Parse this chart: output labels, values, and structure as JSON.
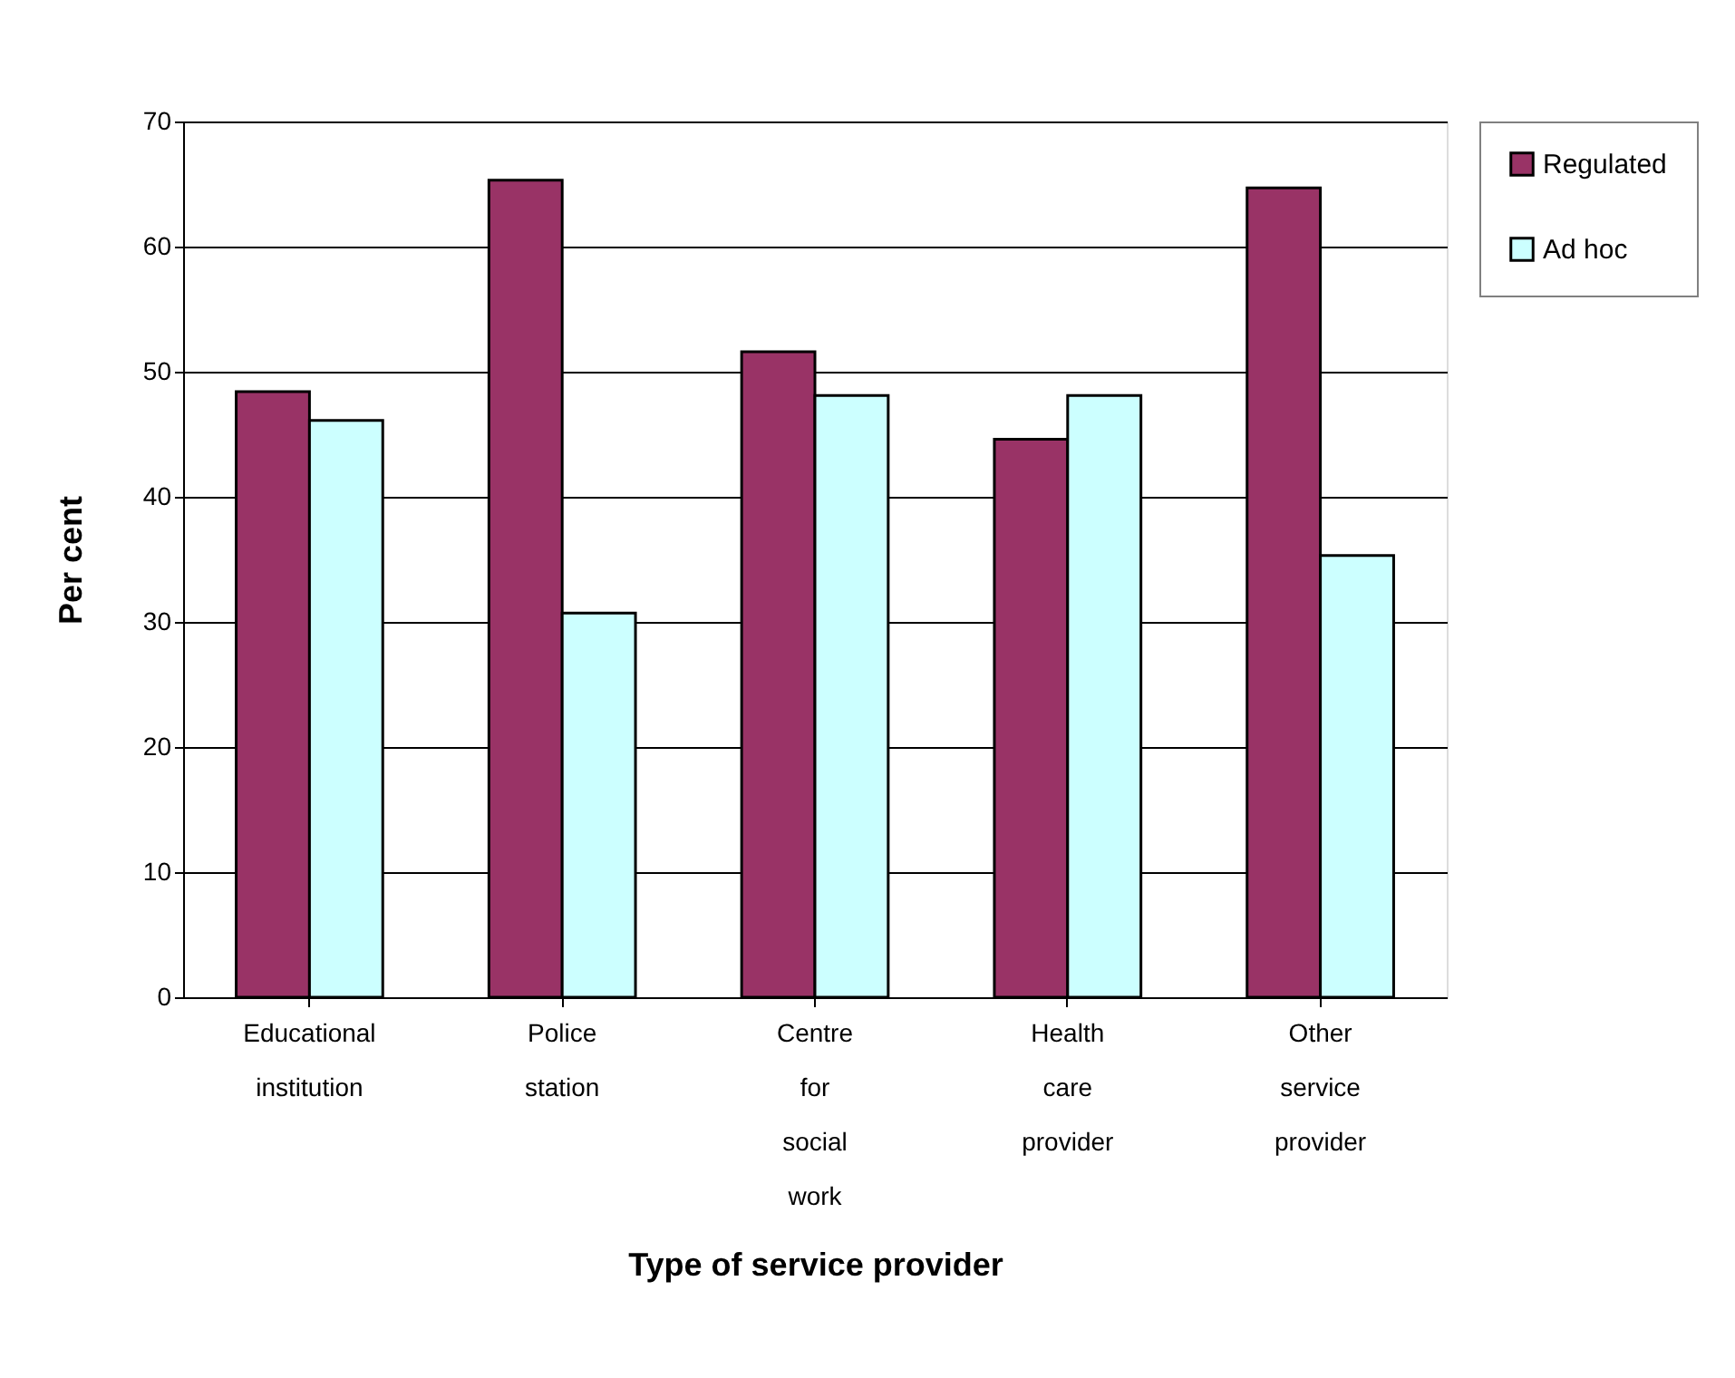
{
  "chart_data": {
    "type": "bar",
    "categories": [
      "Educational institution",
      "Police station",
      "Centre for social work",
      "Health care provider",
      "Other service provider"
    ],
    "series": [
      {
        "name": "Regulated",
        "color": "#993366",
        "values": [
          48.4,
          65.3,
          51.6,
          44.6,
          64.7
        ]
      },
      {
        "name": "Ad hoc",
        "color": "#ccffff",
        "values": [
          46.1,
          30.7,
          48.1,
          48.1,
          35.3
        ]
      }
    ],
    "xlabel": "Type of service provider",
    "ylabel": "Per cent",
    "ylim": [
      0,
      70
    ],
    "yticks": [
      0,
      10,
      20,
      30,
      40,
      50,
      60,
      70
    ],
    "grid": "y",
    "legend": "right"
  }
}
